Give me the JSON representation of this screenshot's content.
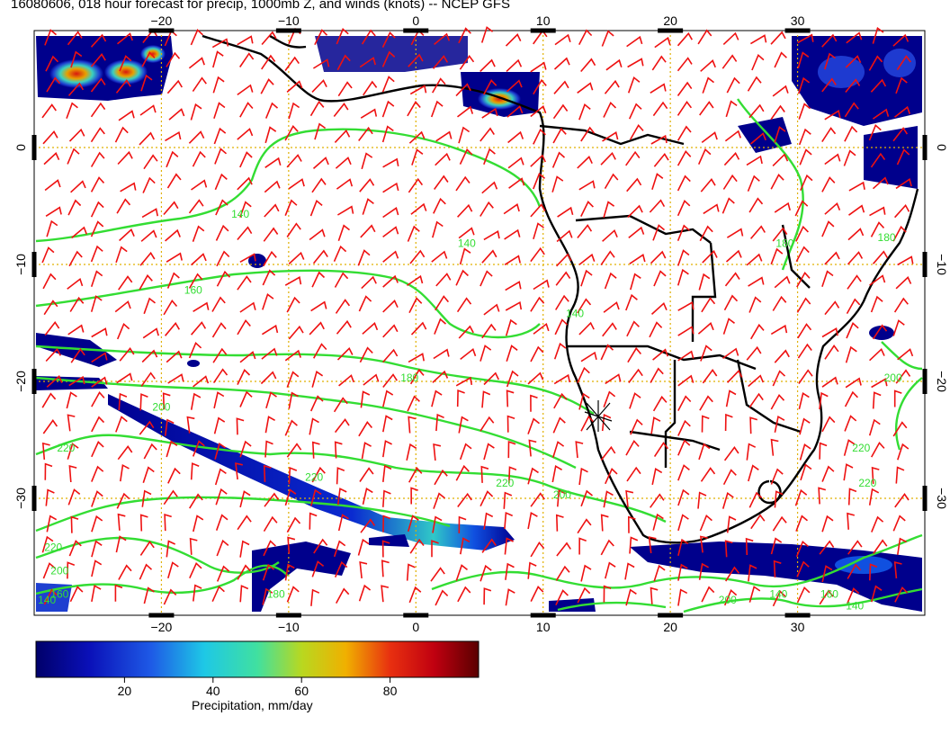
{
  "title": "16080606, 018 hour forecast for precip, 1000mb Z, and winds (knots) -- NCEP GFS",
  "map": {
    "lon_range": [
      -30,
      40
    ],
    "lat_range": [
      -40,
      10
    ],
    "x_ticks": [
      -20,
      -10,
      0,
      10,
      20,
      30
    ],
    "y_ticks": [
      0,
      -10,
      -20,
      -30
    ],
    "grid": "dotted-orange",
    "colors": {
      "contour": "#33dd33",
      "wind": "#ee1111",
      "coast": "#000000",
      "grid": "#e0b000",
      "precip_low": "#000080"
    },
    "contour_labels": [
      {
        "text": "140",
        "lon": -13.8,
        "lat": -6.0
      },
      {
        "text": "140",
        "lon": 4.0,
        "lat": -8.5
      },
      {
        "text": "160",
        "lon": -17.5,
        "lat": -12.5
      },
      {
        "text": "180",
        "lon": -0.5,
        "lat": -20.0
      },
      {
        "text": "200",
        "lon": -20.0,
        "lat": -22.5
      },
      {
        "text": "220",
        "lon": -27.5,
        "lat": -26.0
      },
      {
        "text": "220",
        "lon": -8.0,
        "lat": -28.5
      },
      {
        "text": "220",
        "lon": 7.0,
        "lat": -29.0
      },
      {
        "text": "200",
        "lon": 11.5,
        "lat": -30.0
      },
      {
        "text": "140",
        "lon": 12.5,
        "lat": -14.5
      },
      {
        "text": "180",
        "lon": 29.0,
        "lat": -8.5
      },
      {
        "text": "180",
        "lon": 37.0,
        "lat": -8.0
      },
      {
        "text": "200",
        "lon": 37.5,
        "lat": -20.0
      },
      {
        "text": "220",
        "lon": 35.0,
        "lat": -26.0
      },
      {
        "text": "220",
        "lon": 35.5,
        "lat": -29.0
      },
      {
        "text": "220",
        "lon": -28.5,
        "lat": -34.5
      },
      {
        "text": "200",
        "lon": -28.0,
        "lat": -36.5
      },
      {
        "text": "160",
        "lon": -28.0,
        "lat": -38.5
      },
      {
        "text": "140",
        "lon": -29.0,
        "lat": -39.0
      },
      {
        "text": "180",
        "lon": -11.0,
        "lat": -38.5
      },
      {
        "text": "200",
        "lon": 24.5,
        "lat": -39.0
      },
      {
        "text": "140",
        "lon": 28.5,
        "lat": -38.5
      },
      {
        "text": "160",
        "lon": 32.5,
        "lat": -38.5
      },
      {
        "text": "140",
        "lon": 34.5,
        "lat": -39.5
      }
    ]
  },
  "colorbar": {
    "ticks": [
      20,
      40,
      60,
      80
    ],
    "range": [
      0,
      100
    ],
    "label": "Precipitation, mm/day"
  }
}
